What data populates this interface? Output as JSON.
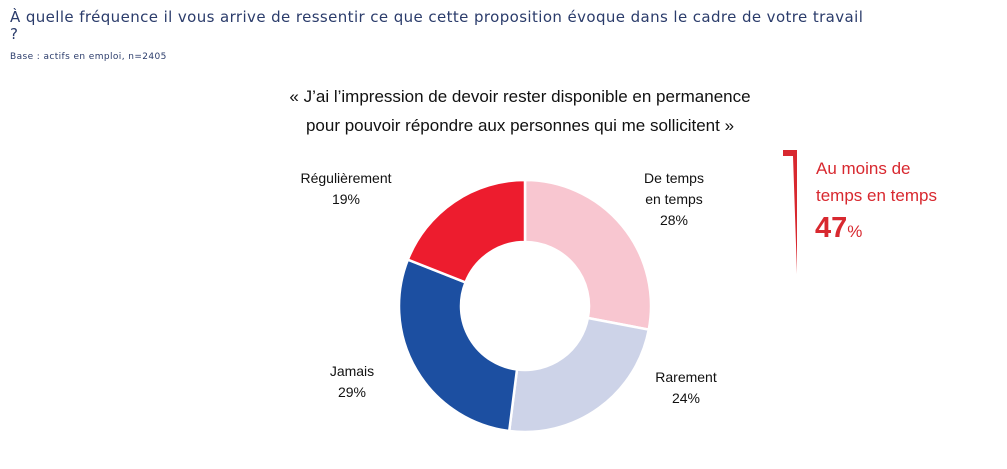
{
  "header": {
    "question": "À quelle fréquence il vous arrive de ressentir ce que cette proposition évoque dans le cadre de votre travail ?",
    "base": "Base : actifs en emploi, n=2405"
  },
  "quote": {
    "line1": "« J’ai l’impression de devoir rester disponible en permanence",
    "line2": "pour pouvoir répondre aux personnes qui me sollicitent »"
  },
  "chart_data": {
    "type": "pie",
    "variant": "donut",
    "slices": [
      {
        "label": "De temps en temps",
        "label_lines": [
          "De temps",
          "en temps"
        ],
        "value": 28,
        "value_label": "28%",
        "color": "#f8c6d0"
      },
      {
        "label": "Rarement",
        "label_lines": [
          "Rarement"
        ],
        "value": 24,
        "value_label": "24%",
        "color": "#cdd3e8"
      },
      {
        "label": "Jamais",
        "label_lines": [
          "Jamais"
        ],
        "value": 29,
        "value_label": "29%",
        "color": "#1c4fa1"
      },
      {
        "label": "Régulièrement",
        "label_lines": [
          "Régulièrement"
        ],
        "value": 19,
        "value_label": "19%",
        "color": "#ed1c2e"
      }
    ]
  },
  "callout": {
    "line1": "Au moins de",
    "line2": "temps en temps",
    "value": "47",
    "unit": "%",
    "color": "#d8282f"
  }
}
